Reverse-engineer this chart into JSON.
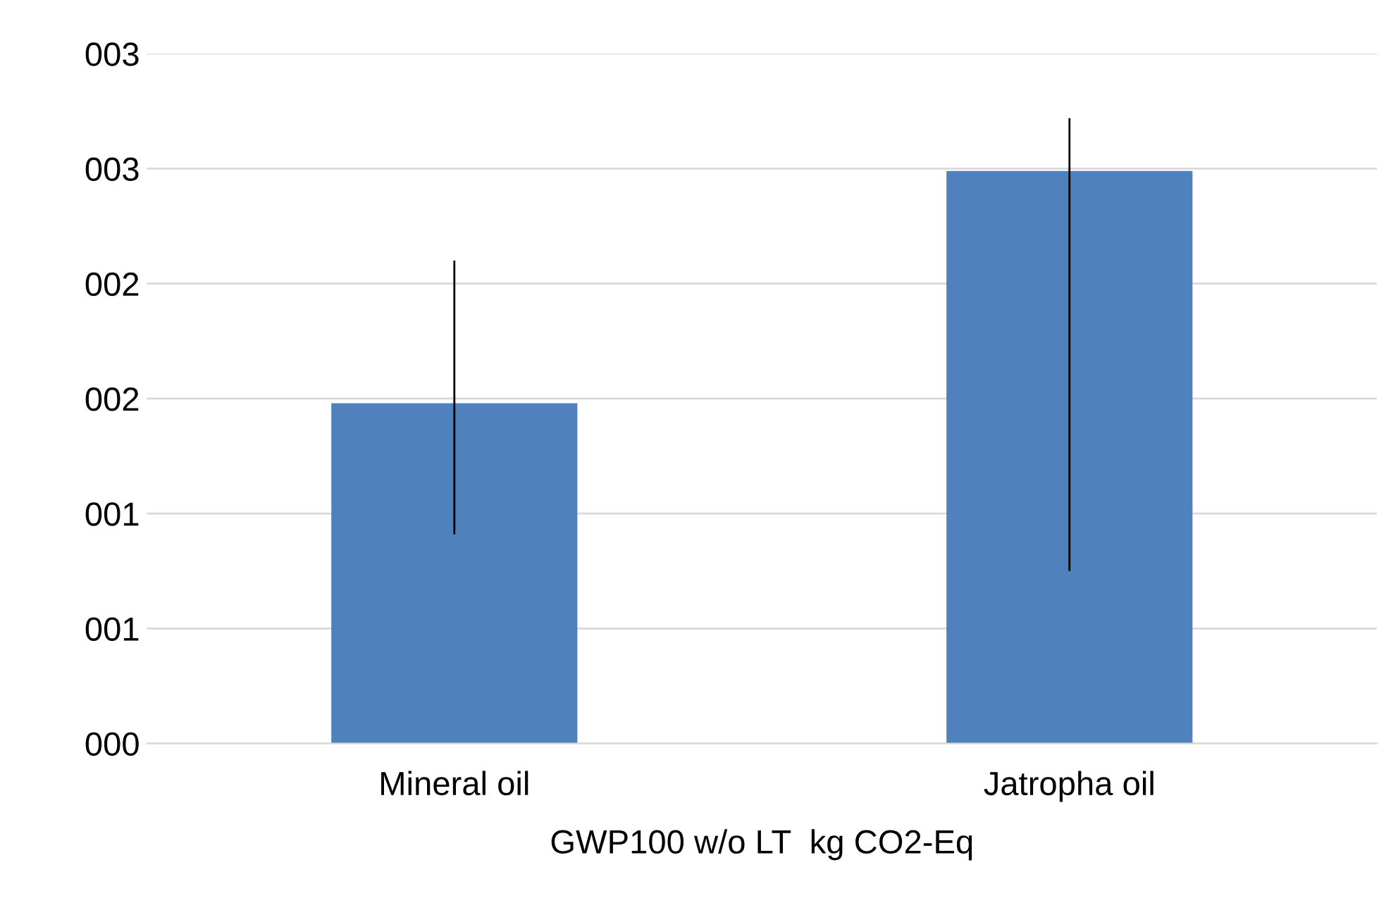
{
  "chart_data": {
    "type": "bar",
    "categories": [
      "Mineral oil",
      "Jatropha oil"
    ],
    "values": [
      1.48,
      2.49
    ],
    "errors": [
      [
        0.91,
        2.1
      ],
      [
        0.75,
        2.72
      ]
    ],
    "color": "#4f81bd",
    "xlabel": "GWP100 w/o LT  kg CO2-Eq",
    "ylim": [
      0,
      3.0
    ],
    "yticks": [
      {
        "value": 0,
        "label": "000"
      },
      {
        "value": 0.5,
        "label": "001"
      },
      {
        "value": 1.0,
        "label": "001"
      },
      {
        "value": 1.5,
        "label": "002"
      },
      {
        "value": 2.0,
        "label": "002"
      },
      {
        "value": 2.5,
        "label": "003"
      },
      {
        "value": 3.0,
        "label": "003"
      }
    ],
    "grid": "y"
  }
}
